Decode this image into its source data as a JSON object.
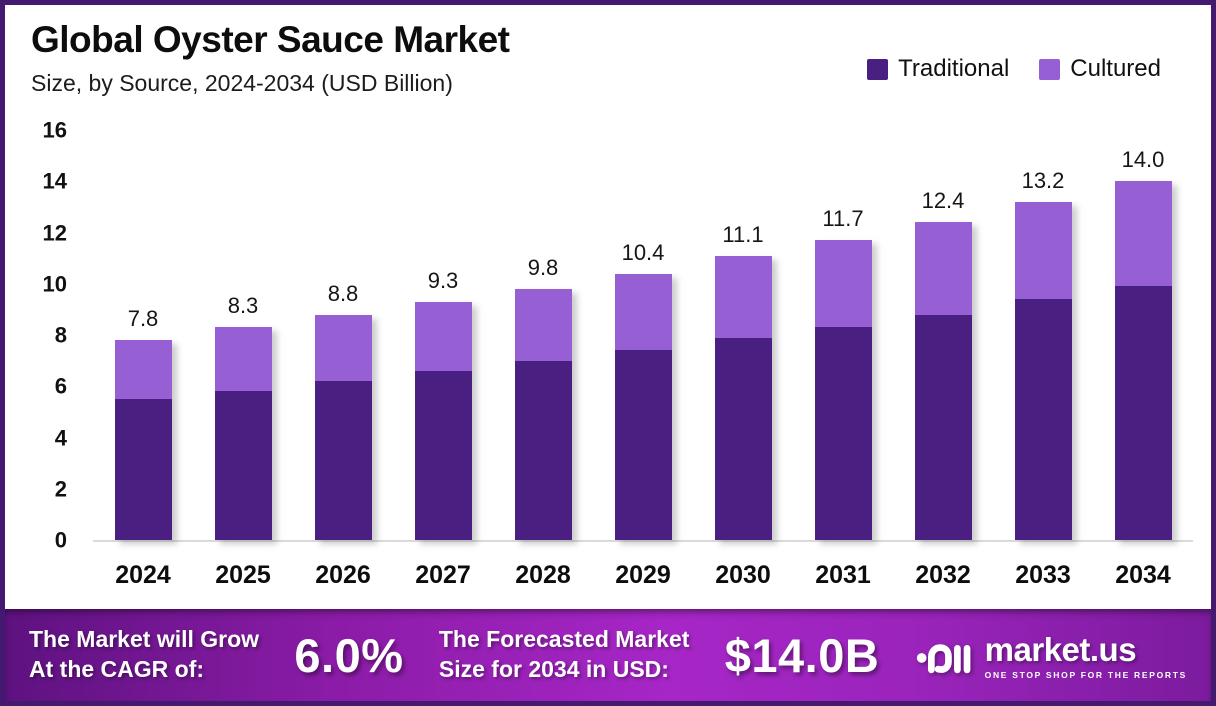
{
  "header": {
    "title": "Global Oyster Sauce Market",
    "subtitle": "Size, by Source, 2024-2034 (USD Billion)"
  },
  "legend": [
    {
      "label": "Traditional",
      "color": "#4A1F82"
    },
    {
      "label": "Cultured",
      "color": "#965FD3"
    }
  ],
  "chart_data": {
    "type": "bar",
    "stacked": true,
    "title": "Global Oyster Sauce Market",
    "subtitle": "Size, by Source, 2024-2034 (USD Billion)",
    "categories": [
      "2024",
      "2025",
      "2026",
      "2027",
      "2028",
      "2029",
      "2030",
      "2031",
      "2032",
      "2033",
      "2034"
    ],
    "series": [
      {
        "name": "Traditional",
        "color": "#4A1F82",
        "values": [
          5.5,
          5.8,
          6.2,
          6.6,
          7.0,
          7.4,
          7.9,
          8.3,
          8.8,
          9.4,
          9.9
        ]
      },
      {
        "name": "Cultured",
        "color": "#965FD3",
        "values": [
          2.3,
          2.5,
          2.6,
          2.7,
          2.8,
          3.0,
          3.2,
          3.4,
          3.6,
          3.8,
          4.1
        ]
      }
    ],
    "totals": [
      7.8,
      8.3,
      8.8,
      9.3,
      9.8,
      10.4,
      11.1,
      11.7,
      12.4,
      13.2,
      14.0
    ],
    "ylabel": "",
    "xlabel": "",
    "ylim": [
      0,
      16
    ],
    "yticks": [
      0,
      2,
      4,
      6,
      8,
      10,
      12,
      14,
      16
    ],
    "grid": false,
    "legend_position": "top-right",
    "units": "USD Billion"
  },
  "banner": {
    "cagr_line1": "The Market will Grow",
    "cagr_line2": "At the CAGR of:",
    "cagr_value": "6.0%",
    "forecast_line1": "The Forecasted Market",
    "forecast_line2": "Size for 2034 in USD:",
    "forecast_value": "$14.0B",
    "logo_text": "market.us",
    "logo_tagline": "ONE STOP SHOP FOR THE REPORTS"
  },
  "colors": {
    "frame_border": "#441A71",
    "banner_purple": "#A626C6",
    "traditional": "#4A1F82",
    "cultured": "#965FD3"
  }
}
